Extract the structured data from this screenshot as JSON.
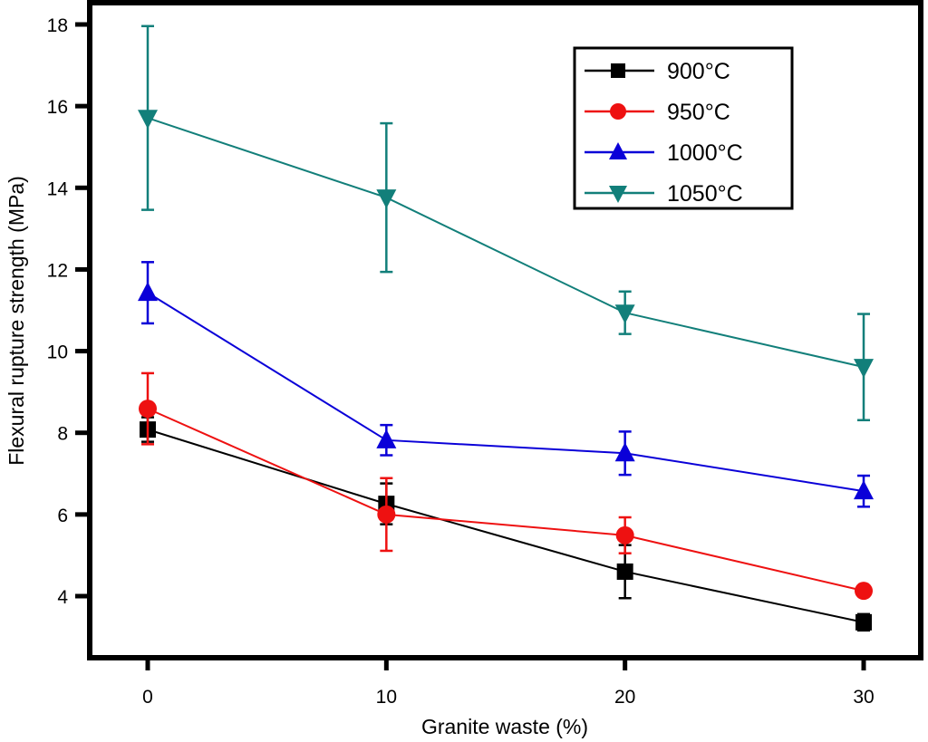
{
  "chart_data": {
    "type": "line",
    "title": "",
    "xlabel": "Granite waste (%)",
    "ylabel": "Flexural rupture strength (MPa)",
    "x": [
      0,
      10,
      20,
      30
    ],
    "xticks": [
      "0",
      "10",
      "20",
      "30"
    ],
    "yticks": [
      "4",
      "6",
      "8",
      "10",
      "12",
      "14",
      "16",
      "18"
    ],
    "xlim": [
      -1.5,
      32.5
    ],
    "ylim": [
      2.6,
      18.6
    ],
    "grid": false,
    "legend": {
      "placement": "top-right",
      "framed": true
    },
    "series": [
      {
        "name": "900°C",
        "color": "#000000",
        "marker": "square",
        "values": [
          8.08,
          6.26,
          4.6,
          3.36
        ],
        "errors": [
          0.3,
          0.5,
          0.65,
          0.2
        ]
      },
      {
        "name": "950°C",
        "color": "#ee1111",
        "marker": "circle",
        "values": [
          8.59,
          6.0,
          5.49,
          4.13
        ],
        "errors": [
          0.87,
          0.89,
          0.44,
          0.1
        ]
      },
      {
        "name": "1000°C",
        "color": "#0a00d8",
        "marker": "triangle-up",
        "values": [
          11.43,
          7.82,
          7.5,
          6.57
        ],
        "errors": [
          0.75,
          0.37,
          0.53,
          0.38
        ]
      },
      {
        "name": "1050°C",
        "color": "#127f7a",
        "marker": "triangle-down",
        "values": [
          15.71,
          13.76,
          10.94,
          9.61
        ],
        "errors": [
          2.25,
          1.82,
          0.52,
          1.3
        ]
      }
    ]
  }
}
